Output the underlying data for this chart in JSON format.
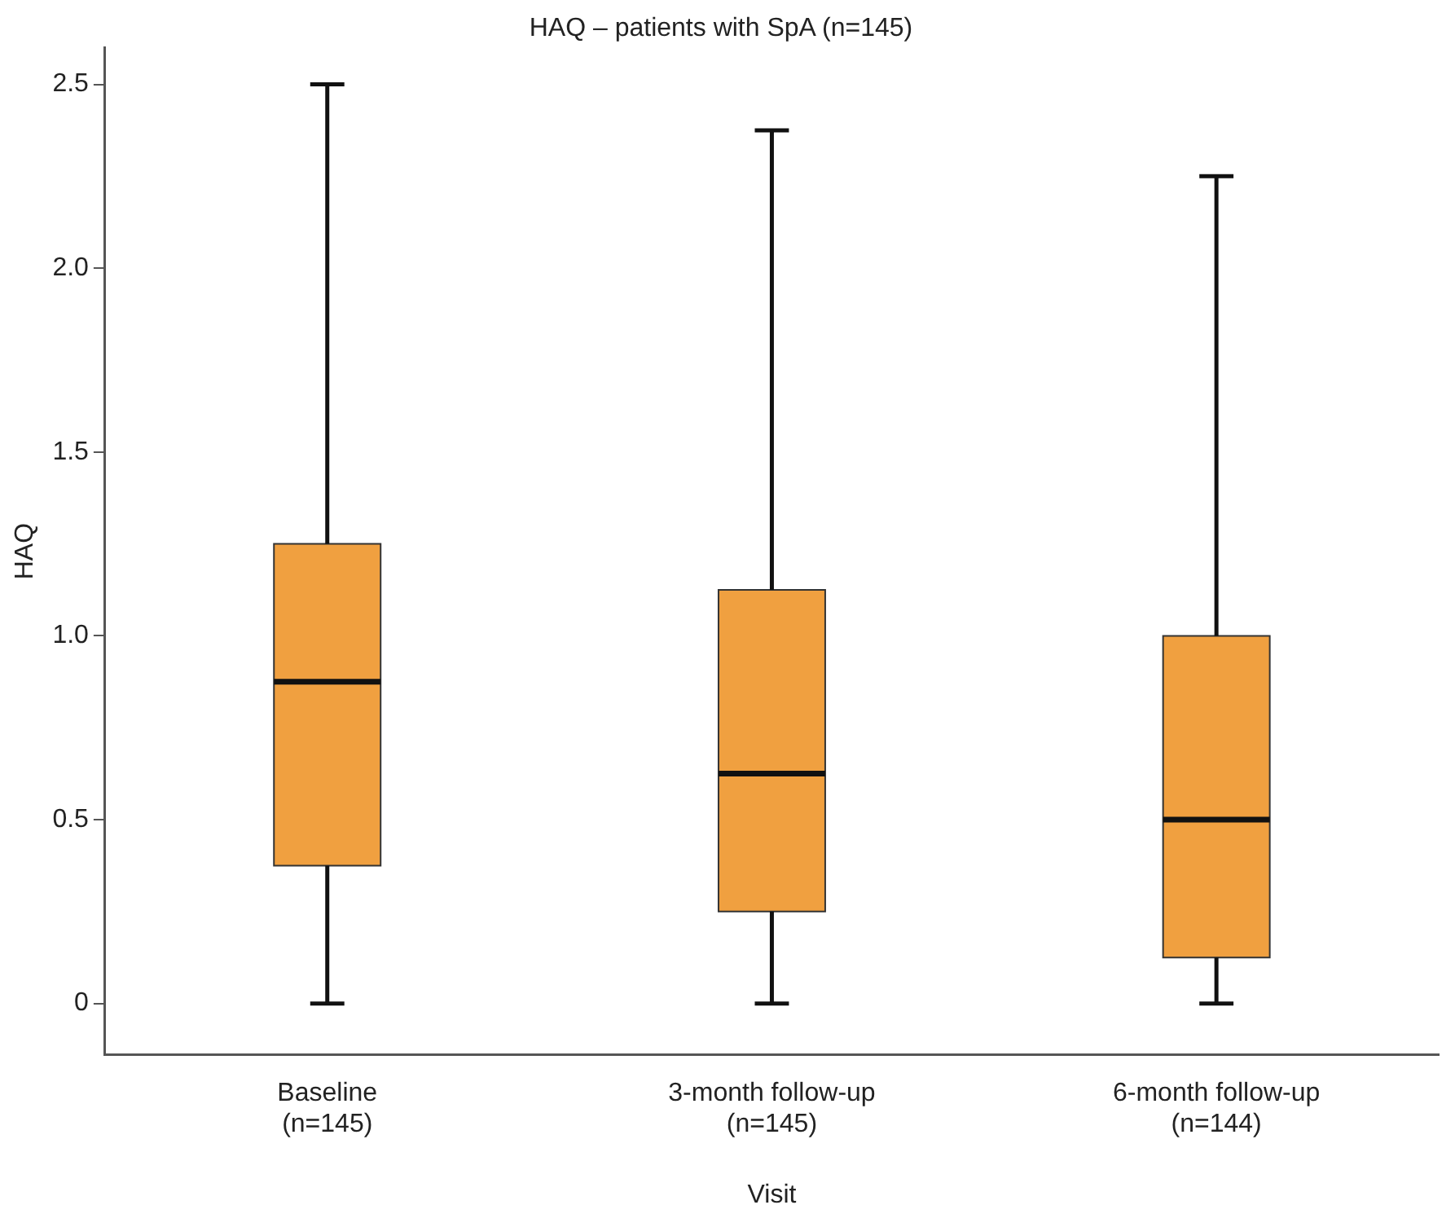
{
  "chart_data": {
    "type": "box",
    "title": "HAQ – patients with SpA (n=145)",
    "xlabel": "Visit",
    "ylabel": "HAQ",
    "categories": [
      "Baseline\n(n=145)",
      "3-month follow-up\n(n=145)",
      "6-month follow-up\n(n=144)"
    ],
    "color": "#f0a040",
    "boxes": [
      {
        "low": 0,
        "q1": 0.375,
        "median": 0.875,
        "q3": 1.25,
        "high": 2.5
      },
      {
        "low": 0,
        "q1": 0.25,
        "median": 0.625,
        "q3": 1.125,
        "high": 2.375
      },
      {
        "low": 0,
        "q1": 0.125,
        "median": 0.5,
        "q3": 1.0,
        "high": 2.25
      }
    ],
    "ylim": [
      -0.14,
      2.6
    ],
    "yticks": [
      0,
      0.5,
      {
        "value": 1,
        "label": "1.0"
      },
      1.5,
      {
        "value": 2,
        "label": "2.0"
      },
      2.5
    ],
    "grid": false,
    "legend": false
  }
}
